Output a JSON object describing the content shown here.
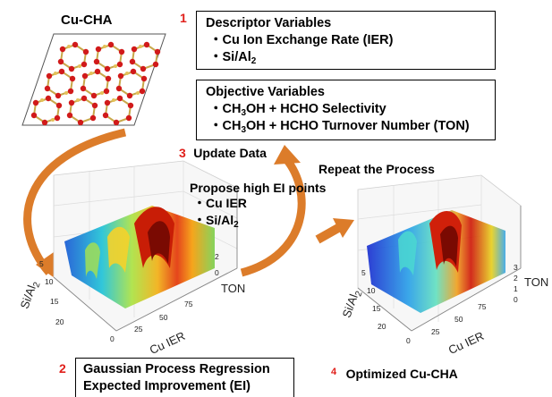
{
  "structure": {
    "title": "Cu-CHA",
    "colors": {
      "o_atom": "#d11a1a",
      "si_atom": "#e4c25a",
      "bond": "#c9a84a"
    }
  },
  "step1": {
    "number": "1",
    "descriptor_box": {
      "heading": "Descriptor Variables",
      "items": [
        {
          "bullet": "・",
          "text": "Cu Ion Exchange Rate (IER)"
        },
        {
          "bullet": "・",
          "text": "Si/Al",
          "sub": "2"
        }
      ]
    },
    "objective_box": {
      "heading": "Objective Variables",
      "items": [
        {
          "bullet": "・",
          "pre": "CH",
          "sub1": "3",
          "post": "OH + HCHO Selectivity"
        },
        {
          "bullet": "・",
          "pre": "CH",
          "sub1": "3",
          "post": "OH + HCHO Turnover Number (TON)"
        }
      ]
    }
  },
  "step3": {
    "number": "3",
    "label": "Update Data"
  },
  "repeat": {
    "label": "Repeat the Process"
  },
  "propose": {
    "title": "Propose high EI points",
    "items": [
      {
        "bullet": "・",
        "text": "Cu IER"
      },
      {
        "bullet": "・",
        "text": "Si/Al",
        "sub": "2"
      }
    ]
  },
  "plot_left": {
    "y_label": "Si/Al",
    "y_label_sub": "2",
    "x_label": "Cu IER",
    "z_label": "TON",
    "y_ticks": [
      "5",
      "10",
      "15",
      "20"
    ],
    "x_ticks": [
      "0",
      "25",
      "50",
      "75"
    ],
    "z_ticks": [
      "0",
      "2"
    ]
  },
  "plot_right": {
    "y_label": "Si/Al",
    "y_label_sub": "2",
    "x_label": "Cu IER",
    "z_label": "TON",
    "y_ticks": [
      "5",
      "10",
      "15",
      "20"
    ],
    "x_ticks": [
      "0",
      "25",
      "50",
      "75"
    ],
    "z_ticks": [
      "0",
      "1",
      "2",
      "3"
    ]
  },
  "step2": {
    "number": "2",
    "lines": [
      "Gaussian Process Regression",
      "Expected Improvement (EI)"
    ]
  },
  "step4": {
    "number": "4",
    "label": "Optimized Cu-CHA"
  },
  "arrow_color": "#dc7c2a"
}
